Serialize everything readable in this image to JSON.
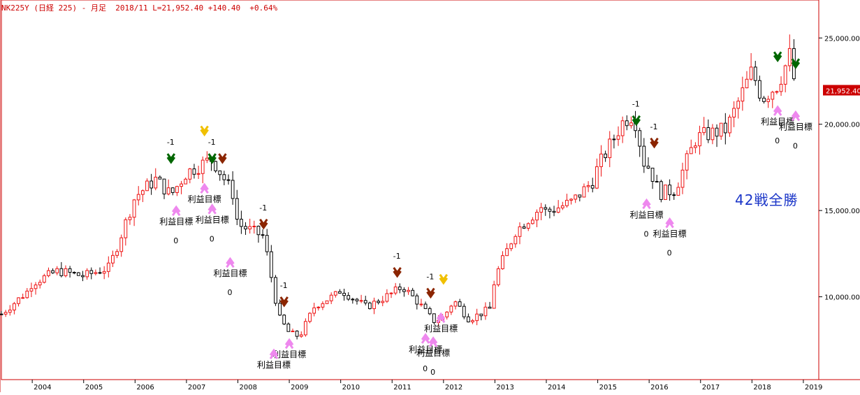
{
  "header": {
    "symbol": "NK225Y",
    "name": "(日経 225)",
    "period": "- 月足",
    "date": "2018/11",
    "last": "L=21,952.40",
    "change": "+140.40",
    "change_pct": "+0.64%"
  },
  "badge": "42戦全勝",
  "colors": {
    "up": "#ee1111",
    "down": "#000000",
    "axis": "#cc0000",
    "badge": "#1a35c8",
    "long_arrow": "#ee88ee",
    "exit_arrow_green": "#006600",
    "exit_arrow_brown": "#8b2500",
    "exit_arrow_yellow": "#f0c000"
  },
  "chart_data": {
    "type": "candlestick",
    "interval": "monthly",
    "x_range": [
      2003.4,
      2019.3
    ],
    "ylim": [
      5200,
      27200
    ],
    "y_ticks": [
      10000,
      15000,
      20000,
      25000
    ],
    "y_tick_labels": [
      "10,000.00",
      "15,000.00",
      "20,000.00",
      "25,000.00"
    ],
    "x_ticks": [
      2004,
      2005,
      2006,
      2007,
      2008,
      2009,
      2010,
      2011,
      2012,
      2013,
      2014,
      2015,
      2016,
      2017,
      2018,
      2019
    ],
    "x_tick_labels": [
      "2004",
      "2005",
      "2006",
      "2007",
      "2008",
      "2009",
      "2010",
      "2011",
      "2012",
      "2013",
      "2014",
      "2015",
      "2016",
      "2017",
      "2018",
      "2019"
    ],
    "last_price_label": "21,952.40",
    "last_price": 21952.4,
    "year_closes": {
      "2003.4": 9000,
      "2003.9": 10300,
      "2004": 10800,
      "2004.5": 11500,
      "2005": 11200,
      "2005.5": 11700,
      "2006": 15800,
      "2006.4": 16800,
      "2006.7": 15900,
      "2007": 17200,
      "2007.5": 18000,
      "2007.9": 16000,
      "2008": 14200,
      "2008.5": 13500,
      "2008.8": 8800,
      "2009": 7900,
      "2009.2": 7700,
      "2009.5": 9500,
      "2009.9": 10100,
      "2010": 10400,
      "2010.5": 9400,
      "2011": 10200,
      "2011.2": 10600,
      "2011.5": 9700,
      "2011.8": 8600,
      "2012": 8800,
      "2012.2": 9800,
      "2012.5": 8700,
      "2012.9": 9300,
      "2013": 11100,
      "2013.4": 13800,
      "2013.9": 15200,
      "2014": 14900,
      "2014.5": 15500,
      "2014.9": 16700,
      "2015": 17500,
      "2015.5": 20200,
      "2015.7": 20600,
      "2015.9": 17800,
      "2016": 17500,
      "2016.2": 16000,
      "2016.5": 16200,
      "2016.9": 19100,
      "2017": 19300,
      "2017.5": 19700,
      "2017.9": 22400,
      "2018": 23100,
      "2018.2": 21500,
      "2018.5": 22300,
      "2018.75": 24100,
      "2018.85": 21900
    },
    "signals": [
      {
        "kind": "entry",
        "x": 2006.8,
        "y": 15200,
        "label": "利益目標",
        "result": "0"
      },
      {
        "kind": "exit",
        "color": "green",
        "x": 2006.7,
        "y": 17800,
        "result": "-1"
      },
      {
        "kind": "entry",
        "x": 2007.35,
        "y": 16500,
        "label": "利益目標",
        "result": ""
      },
      {
        "kind": "entry",
        "x": 2007.5,
        "y": 15300,
        "label": "利益目標",
        "result": "0"
      },
      {
        "kind": "exit",
        "color": "yellow",
        "x": 2007.35,
        "y": 19400
      },
      {
        "kind": "exit",
        "color": "green",
        "x": 2007.5,
        "y": 17800,
        "result": "-1"
      },
      {
        "kind": "exit",
        "color": "brown",
        "x": 2007.7,
        "y": 17800
      },
      {
        "kind": "entry",
        "x": 2007.85,
        "y": 12200,
        "label": "利益目標",
        "result": "0"
      },
      {
        "kind": "exit",
        "color": "brown",
        "x": 2008.5,
        "y": 14000,
        "result": "-1"
      },
      {
        "kind": "entry",
        "x": 2009.0,
        "y": 7500,
        "label": "利益目標",
        "result": ""
      },
      {
        "kind": "entry",
        "x": 2008.7,
        "y": 6900,
        "label": "利益目標",
        "result": ""
      },
      {
        "kind": "exit",
        "color": "brown",
        "x": 2008.9,
        "y": 9500,
        "result": "-1"
      },
      {
        "kind": "exit",
        "color": "brown",
        "x": 2011.1,
        "y": 11200,
        "result": "-1"
      },
      {
        "kind": "entry",
        "x": 2011.65,
        "y": 7800,
        "label": "利益目標",
        "result": "0"
      },
      {
        "kind": "entry",
        "x": 2011.8,
        "y": 7600,
        "label": "利益目標",
        "result": "0"
      },
      {
        "kind": "exit",
        "color": "brown",
        "x": 2011.75,
        "y": 10000,
        "result": "-1"
      },
      {
        "kind": "exit",
        "color": "yellow",
        "x": 2012.0,
        "y": 10800
      },
      {
        "kind": "entry",
        "x": 2011.95,
        "y": 9000,
        "label": "利益目標",
        "result": ""
      },
      {
        "kind": "exit",
        "color": "green",
        "x": 2015.75,
        "y": 20000,
        "result": "-1"
      },
      {
        "kind": "exit",
        "color": "brown",
        "x": 2016.1,
        "y": 18700,
        "result": "-1"
      },
      {
        "kind": "entry",
        "x": 2015.95,
        "y": 15600,
        "label": "利益目標",
        "result": "0"
      },
      {
        "kind": "entry",
        "x": 2016.4,
        "y": 14500,
        "label": "利益目標",
        "result": "0"
      },
      {
        "kind": "exit",
        "color": "green",
        "x": 2018.5,
        "y": 23700
      },
      {
        "kind": "exit",
        "color": "green",
        "x": 2018.85,
        "y": 23300
      },
      {
        "kind": "entry",
        "x": 2018.5,
        "y": 21000,
        "label": "利益目標",
        "result": "0"
      },
      {
        "kind": "entry",
        "x": 2018.85,
        "y": 20700,
        "label": "利益目標",
        "result": "0"
      }
    ]
  }
}
